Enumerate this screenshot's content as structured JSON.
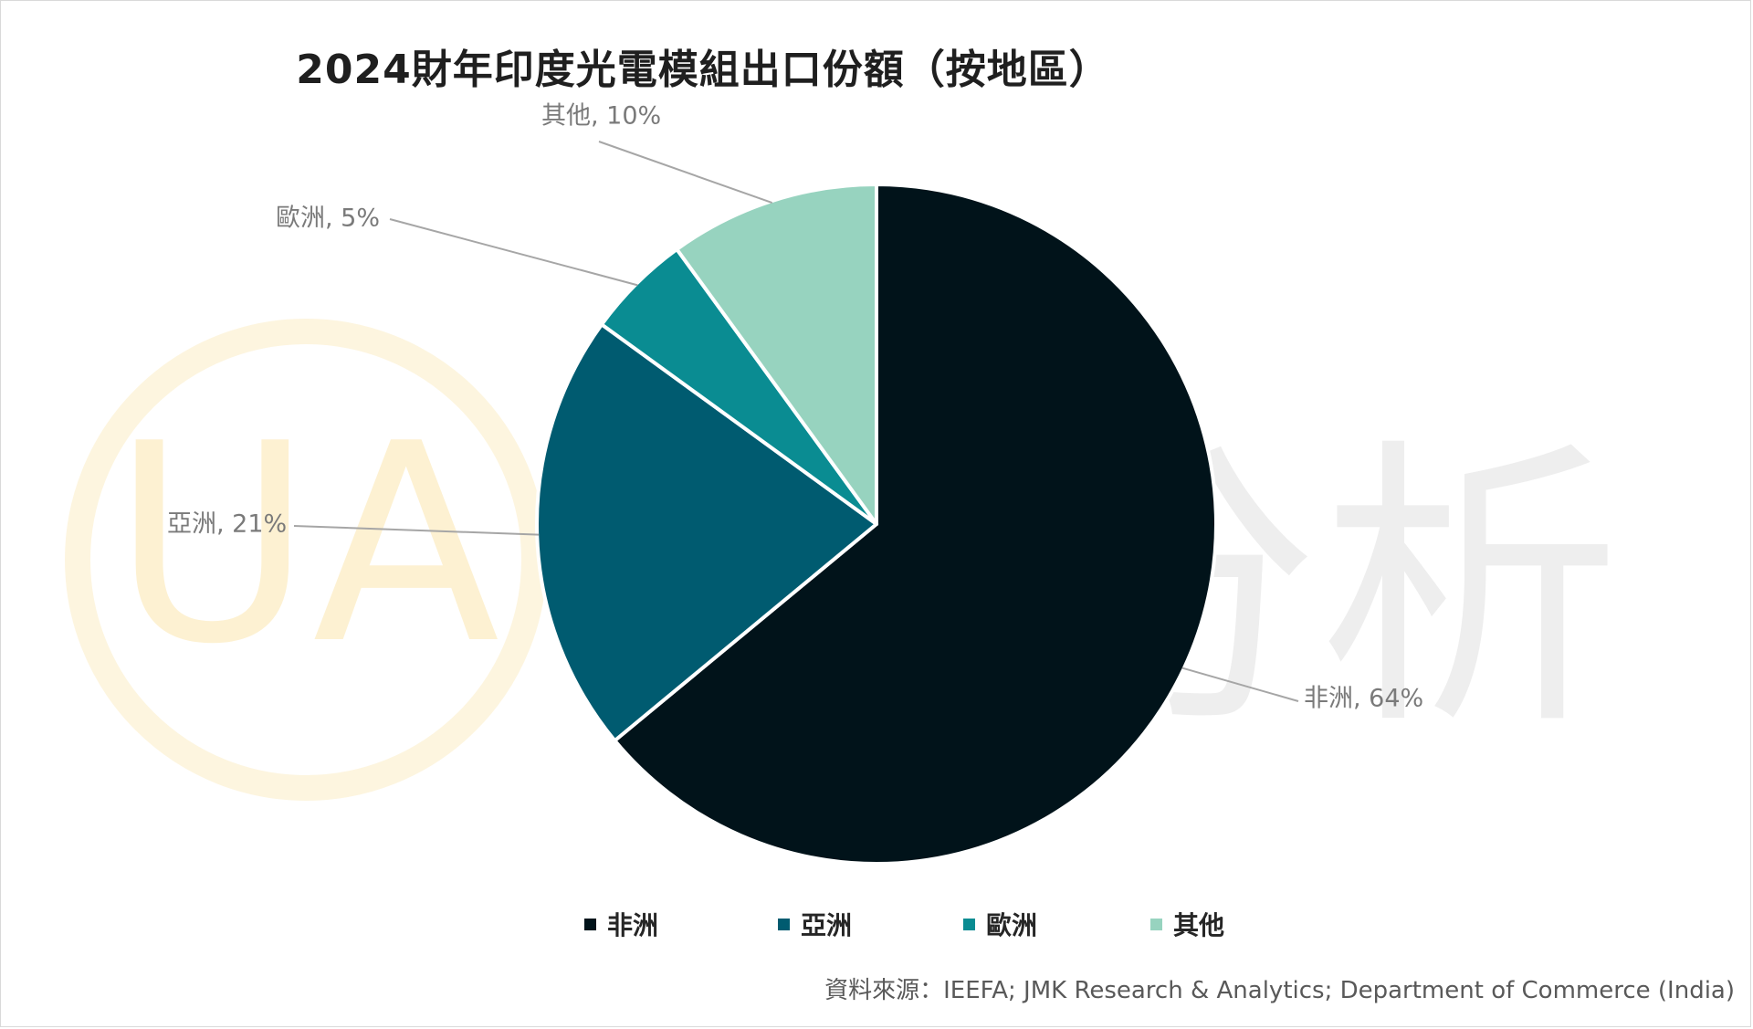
{
  "chart_data": {
    "type": "pie",
    "title": "2024財年印度光電模組出口份額（按地區）",
    "slices": [
      {
        "name": "非洲",
        "value": 64,
        "label": "非洲, 64%",
        "color": "#01131a"
      },
      {
        "name": "亞洲",
        "value": 21,
        "label": "亞洲, 21%",
        "color": "#005b70"
      },
      {
        "name": "歐洲",
        "value": 5,
        "label": "歐洲, 5%",
        "color": "#0a8c92"
      },
      {
        "name": "其他",
        "value": 10,
        "label": "其他, 10%",
        "color": "#97d3bf"
      }
    ],
    "legend_position": "bottom",
    "start_angle_deg": 0,
    "direction": "clockwise"
  },
  "source": "資料來源：IEEFA; JMK Research & Analytics; Department of Commerce (India)",
  "watermark": {
    "glyphs": "UA",
    "text": "優分析",
    "ring_color": "#fdf3d8",
    "text_color": "#ececec"
  }
}
